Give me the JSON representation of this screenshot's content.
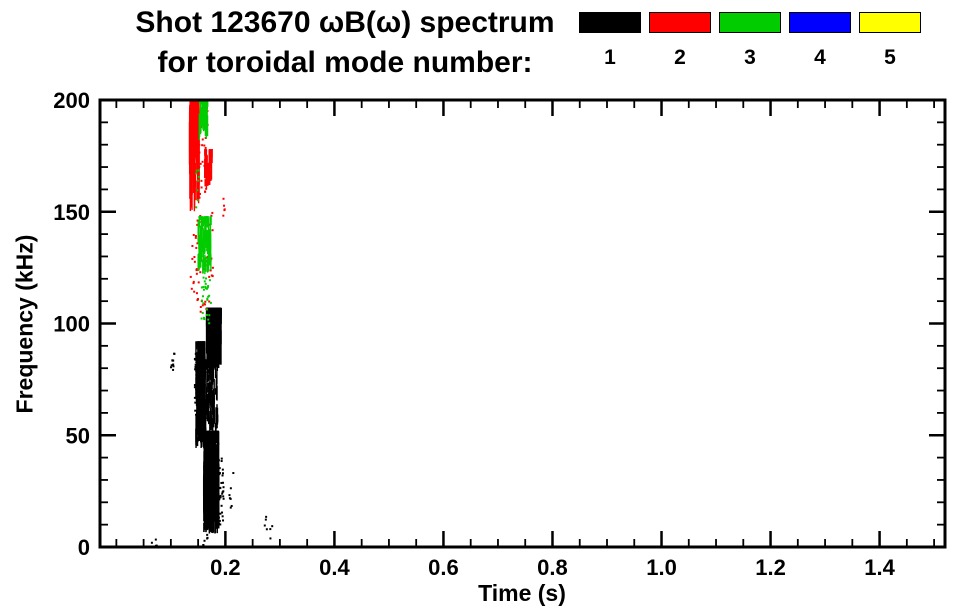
{
  "legend": {
    "entries": [
      {
        "label": "1",
        "color": "#000000"
      },
      {
        "label": "2",
        "color": "#ff0000"
      },
      {
        "label": "3",
        "color": "#00cc00"
      },
      {
        "label": "4",
        "color": "#0000ff"
      },
      {
        "label": "5",
        "color": "#ffff00"
      }
    ]
  },
  "chart_data": {
    "type": "scatter",
    "title": "Shot 123670 ωB(ω) spectrum",
    "subtitle": "for toroidal mode number:",
    "xlabel": "Time (s)",
    "ylabel": "Frequency (kHz)",
    "xlim": [
      -0.03,
      1.52
    ],
    "ylim": [
      0,
      200
    ],
    "x_major_ticks": [
      0.2,
      0.4,
      0.6,
      0.8,
      1.0,
      1.2,
      1.4
    ],
    "x_tick_labels": [
      "0.2",
      "0.4",
      "0.6",
      "0.8",
      "1.0",
      "1.2",
      "1.4"
    ],
    "y_major_ticks": [
      0,
      50,
      100,
      150,
      200
    ],
    "y_tick_labels": [
      "0",
      "50",
      "100",
      "150",
      "200"
    ],
    "x_minor_step": 0.05,
    "y_minor_step": 10,
    "grid": false,
    "legend_position": "top-right",
    "background": "#ffffff",
    "axis_color": "#000000",
    "series": [
      {
        "name": "n=1",
        "mode": "1",
        "color": "#000000",
        "clusters": [
          {
            "t": [
              0.146,
              0.163
            ],
            "f": [
              44,
              92
            ],
            "n": 260,
            "style": "streaks",
            "len": [
              3,
              12
            ]
          },
          {
            "t": [
              0.16,
              0.188
            ],
            "f": [
              6,
              52
            ],
            "n": 380,
            "style": "streaks",
            "len": [
              3,
              14
            ],
            "w": 1.6
          },
          {
            "t": [
              0.166,
              0.192
            ],
            "f": [
              80,
              107
            ],
            "n": 320,
            "style": "streaks",
            "len": [
              4,
              16
            ],
            "w": 2
          },
          {
            "t": [
              0.15,
              0.186
            ],
            "f": [
              50,
              84
            ],
            "n": 200,
            "style": "streaks",
            "len": [
              2,
              8
            ]
          },
          {
            "t": [
              0.144,
              0.15
            ],
            "f": [
              55,
              90
            ],
            "n": 40,
            "style": "dots"
          },
          {
            "t": [
              0.186,
              0.196
            ],
            "f": [
              10,
              45
            ],
            "n": 40,
            "style": "dots"
          },
          {
            "t": [
              0.098,
              0.107
            ],
            "f": [
              79,
              87
            ],
            "n": 10,
            "style": "dots"
          },
          {
            "t": [
              0.272,
              0.288
            ],
            "f": [
              3,
              14
            ],
            "n": 7,
            "style": "dots"
          },
          {
            "t": [
              0.063,
              0.075
            ],
            "f": [
              0,
              4
            ],
            "n": 4,
            "style": "dots"
          },
          {
            "t": [
              0.196,
              0.215
            ],
            "f": [
              16,
              34
            ],
            "n": 10,
            "style": "dots"
          },
          {
            "t": [
              0.158,
              0.168
            ],
            "f": [
              0,
              6
            ],
            "n": 6,
            "style": "dots"
          }
        ]
      },
      {
        "name": "n=2",
        "mode": "2",
        "color": "#ff0000",
        "clusters": [
          {
            "t": [
              0.134,
              0.152
            ],
            "f": [
              150,
              200
            ],
            "n": 90,
            "style": "streaks",
            "len": [
              8,
              30
            ]
          },
          {
            "t": [
              0.15,
              0.168
            ],
            "f": [
              155,
              200
            ],
            "n": 40,
            "style": "dots"
          },
          {
            "t": [
              0.162,
              0.176
            ],
            "f": [
              160,
              178
            ],
            "n": 50,
            "style": "streaks",
            "len": [
              3,
              10
            ]
          },
          {
            "t": [
              0.148,
              0.178
            ],
            "f": [
              104,
              152
            ],
            "n": 60,
            "style": "dots"
          },
          {
            "t": [
              0.136,
              0.148
            ],
            "f": [
              112,
              140
            ],
            "n": 18,
            "style": "dots"
          },
          {
            "t": [
              0.19,
              0.2
            ],
            "f": [
              148,
              156
            ],
            "n": 5,
            "style": "dots"
          }
        ]
      },
      {
        "name": "n=3",
        "mode": "3",
        "color": "#00cc00",
        "clusters": [
          {
            "t": [
              0.15,
              0.174
            ],
            "f": [
              122,
              148
            ],
            "n": 110,
            "style": "streaks",
            "len": [
              3,
              10
            ]
          },
          {
            "t": [
              0.152,
              0.168
            ],
            "f": [
              182,
              200
            ],
            "n": 45,
            "style": "streaks",
            "len": [
              4,
              14
            ]
          },
          {
            "t": [
              0.156,
              0.174
            ],
            "f": [
              100,
              121
            ],
            "n": 30,
            "style": "dots"
          },
          {
            "t": [
              0.146,
              0.152
            ],
            "f": [
              150,
              170
            ],
            "n": 8,
            "style": "dots"
          }
        ]
      },
      {
        "name": "n=4",
        "mode": "4",
        "color": "#0000ff",
        "clusters": []
      },
      {
        "name": "n=5",
        "mode": "5",
        "color": "#ffff00",
        "clusters": []
      }
    ]
  }
}
